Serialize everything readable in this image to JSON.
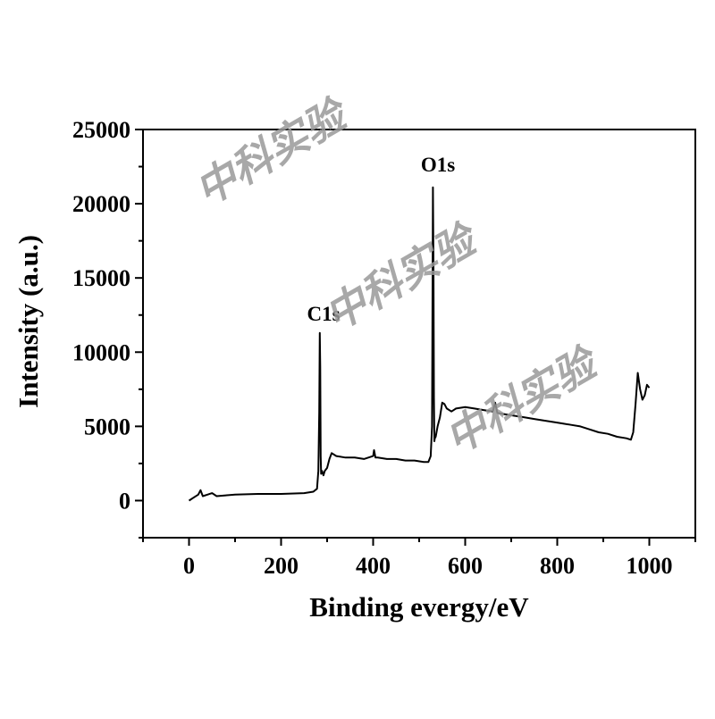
{
  "chart_data": {
    "type": "line",
    "title": "",
    "xlabel": "Binding evergy/eV",
    "ylabel": "Intensity (a.u.)",
    "xlim": [
      -100,
      1100
    ],
    "ylim": [
      -2500,
      25000
    ],
    "xticks": [
      0,
      200,
      400,
      600,
      800,
      1000
    ],
    "yticks": [
      0,
      5000,
      10000,
      15000,
      20000,
      25000
    ],
    "xtick_labels": [
      "0",
      "200",
      "400",
      "600",
      "800",
      "1000"
    ],
    "ytick_labels": [
      "0",
      "5000",
      "10000",
      "15000",
      "20000",
      "25000"
    ],
    "grid": false,
    "legend": "none",
    "line_color": "#000000",
    "annotations": [
      {
        "text": "C1s",
        "x": 285,
        "y": 11300
      },
      {
        "text": "O1s",
        "x": 532,
        "y": 21100
      }
    ],
    "series": [
      {
        "x": [
          0,
          10,
          20,
          25,
          30,
          40,
          50,
          60,
          80,
          100,
          150,
          200,
          250,
          270,
          278,
          281,
          283,
          284,
          285,
          286,
          287,
          289,
          292,
          295,
          300,
          305,
          310,
          320,
          340,
          360,
          380,
          400,
          402,
          405,
          410,
          430,
          450,
          470,
          490,
          510,
          520,
          525,
          528,
          530,
          531,
          532,
          533,
          534,
          536,
          540,
          545,
          550,
          555,
          560,
          570,
          580,
          600,
          620,
          640,
          660,
          665,
          670,
          690,
          710,
          730,
          750,
          770,
          790,
          810,
          830,
          850,
          870,
          890,
          910,
          930,
          950,
          960,
          965,
          970,
          975,
          980,
          985,
          990,
          995,
          1000
        ],
        "y": [
          0,
          200,
          400,
          700,
          300,
          400,
          500,
          300,
          350,
          400,
          450,
          450,
          500,
          600,
          800,
          2000,
          6000,
          11300,
          9000,
          3000,
          1800,
          2000,
          1700,
          2000,
          2200,
          2800,
          3200,
          3000,
          2900,
          2900,
          2800,
          3000,
          3400,
          2900,
          2900,
          2800,
          2800,
          2700,
          2700,
          2600,
          2600,
          3000,
          5000,
          21100,
          16000,
          7000,
          4000,
          4200,
          4300,
          5000,
          5600,
          6600,
          6500,
          6200,
          6000,
          6200,
          6300,
          6200,
          6100,
          6000,
          6600,
          5900,
          5800,
          5700,
          5600,
          5500,
          5400,
          5300,
          5200,
          5100,
          5000,
          4800,
          4600,
          4500,
          4300,
          4200,
          4100,
          4600,
          6500,
          8600,
          7500,
          6800,
          7100,
          7800,
          7600
        ]
      }
    ]
  },
  "watermark": {
    "text": "中科实验",
    "color": "#9a9a9a"
  }
}
